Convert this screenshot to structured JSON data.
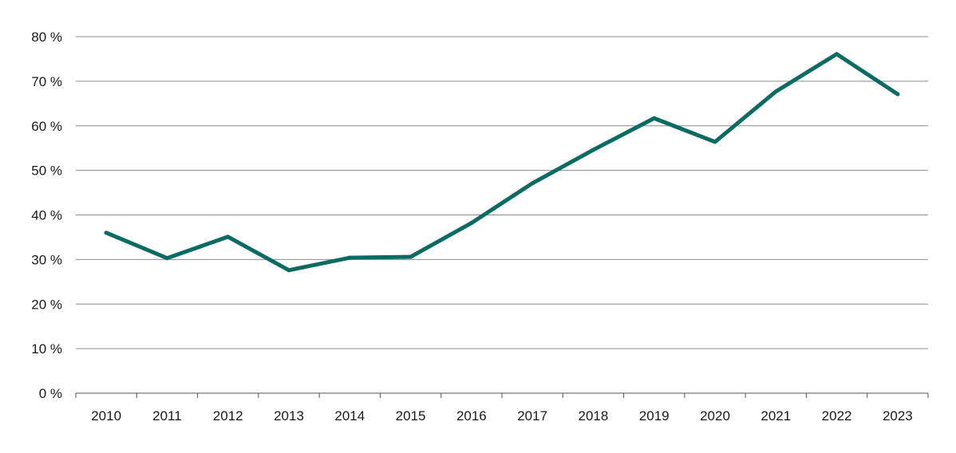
{
  "chart_data": {
    "type": "line",
    "title": "",
    "xlabel": "",
    "ylabel": "",
    "categories": [
      "2010",
      "2011",
      "2012",
      "2013",
      "2014",
      "2015",
      "2016",
      "2017",
      "2018",
      "2019",
      "2020",
      "2021",
      "2022",
      "2023"
    ],
    "series": [
      {
        "name": "",
        "color": "#0a6b62",
        "values": [
          36,
          30.3,
          35.1,
          27.6,
          30.4,
          30.6,
          38.2,
          47.1,
          54.6,
          61.7,
          56.4,
          67.7,
          76.1,
          67.1
        ]
      }
    ],
    "ylim": [
      0,
      80
    ],
    "yticks": [
      0,
      10,
      20,
      30,
      40,
      50,
      60,
      70,
      80
    ],
    "ytick_labels": [
      "0 %",
      "10 %",
      "20 %",
      "30 %",
      "40 %",
      "50 %",
      "60 %",
      "70 %",
      "80 %"
    ],
    "grid": true,
    "legend": "none"
  }
}
